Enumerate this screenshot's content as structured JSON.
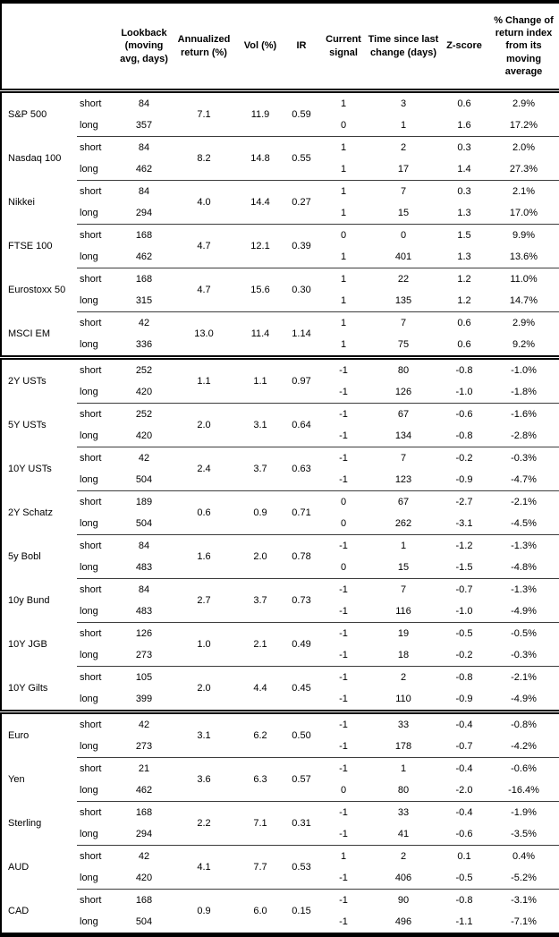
{
  "table": {
    "columns": [
      "",
      "",
      "Lookback (moving avg, days)",
      "Annualized return (%)",
      "Vol (%)",
      "IR",
      "Current signal",
      "Time since last change (days)",
      "Z-score",
      "% Change of return index from its moving average"
    ],
    "legs": {
      "short": "short",
      "long": "long"
    },
    "colors": {
      "text": "#000000",
      "background": "#ffffff",
      "rule": "#000000"
    },
    "sections": [
      {
        "rows": [
          {
            "name": "S&P 500",
            "ann": "7.1",
            "vol": "11.9",
            "ir": "0.59",
            "short": {
              "lookback": "84",
              "signal": "1",
              "days": "3",
              "z": "0.6",
              "chg": "2.9%"
            },
            "long": {
              "lookback": "357",
              "signal": "0",
              "days": "1",
              "z": "1.6",
              "chg": "17.2%"
            }
          },
          {
            "name": "Nasdaq 100",
            "ann": "8.2",
            "vol": "14.8",
            "ir": "0.55",
            "short": {
              "lookback": "84",
              "signal": "1",
              "days": "2",
              "z": "0.3",
              "chg": "2.0%"
            },
            "long": {
              "lookback": "462",
              "signal": "1",
              "days": "17",
              "z": "1.4",
              "chg": "27.3%"
            }
          },
          {
            "name": "Nikkei",
            "ann": "4.0",
            "vol": "14.4",
            "ir": "0.27",
            "short": {
              "lookback": "84",
              "signal": "1",
              "days": "7",
              "z": "0.3",
              "chg": "2.1%"
            },
            "long": {
              "lookback": "294",
              "signal": "1",
              "days": "15",
              "z": "1.3",
              "chg": "17.0%"
            }
          },
          {
            "name": "FTSE 100",
            "ann": "4.7",
            "vol": "12.1",
            "ir": "0.39",
            "short": {
              "lookback": "168",
              "signal": "0",
              "days": "0",
              "z": "1.5",
              "chg": "9.9%"
            },
            "long": {
              "lookback": "462",
              "signal": "1",
              "days": "401",
              "z": "1.3",
              "chg": "13.6%"
            }
          },
          {
            "name": "Eurostoxx 50",
            "ann": "4.7",
            "vol": "15.6",
            "ir": "0.30",
            "short": {
              "lookback": "168",
              "signal": "1",
              "days": "22",
              "z": "1.2",
              "chg": "11.0%"
            },
            "long": {
              "lookback": "315",
              "signal": "1",
              "days": "135",
              "z": "1.2",
              "chg": "14.7%"
            }
          },
          {
            "name": "MSCI EM",
            "ann": "13.0",
            "vol": "11.4",
            "ir": "1.14",
            "short": {
              "lookback": "42",
              "signal": "1",
              "days": "7",
              "z": "0.6",
              "chg": "2.9%"
            },
            "long": {
              "lookback": "336",
              "signal": "1",
              "days": "75",
              "z": "0.6",
              "chg": "9.2%"
            }
          }
        ]
      },
      {
        "rows": [
          {
            "name": "2Y USTs",
            "ann": "1.1",
            "vol": "1.1",
            "ir": "0.97",
            "short": {
              "lookback": "252",
              "signal": "-1",
              "days": "80",
              "z": "-0.8",
              "chg": "-1.0%"
            },
            "long": {
              "lookback": "420",
              "signal": "-1",
              "days": "126",
              "z": "-1.0",
              "chg": "-1.8%"
            }
          },
          {
            "name": "5Y USTs",
            "ann": "2.0",
            "vol": "3.1",
            "ir": "0.64",
            "short": {
              "lookback": "252",
              "signal": "-1",
              "days": "67",
              "z": "-0.6",
              "chg": "-1.6%"
            },
            "long": {
              "lookback": "420",
              "signal": "-1",
              "days": "134",
              "z": "-0.8",
              "chg": "-2.8%"
            }
          },
          {
            "name": "10Y USTs",
            "ann": "2.4",
            "vol": "3.7",
            "ir": "0.63",
            "short": {
              "lookback": "42",
              "signal": "-1",
              "days": "7",
              "z": "-0.2",
              "chg": "-0.3%"
            },
            "long": {
              "lookback": "504",
              "signal": "-1",
              "days": "123",
              "z": "-0.9",
              "chg": "-4.7%"
            }
          },
          {
            "name": "2Y Schatz",
            "ann": "0.6",
            "vol": "0.9",
            "ir": "0.71",
            "short": {
              "lookback": "189",
              "signal": "0",
              "days": "67",
              "z": "-2.7",
              "chg": "-2.1%"
            },
            "long": {
              "lookback": "504",
              "signal": "0",
              "days": "262",
              "z": "-3.1",
              "chg": "-4.5%"
            }
          },
          {
            "name": "5y Bobl",
            "ann": "1.6",
            "vol": "2.0",
            "ir": "0.78",
            "short": {
              "lookback": "84",
              "signal": "-1",
              "days": "1",
              "z": "-1.2",
              "chg": "-1.3%"
            },
            "long": {
              "lookback": "483",
              "signal": "0",
              "days": "15",
              "z": "-1.5",
              "chg": "-4.8%"
            }
          },
          {
            "name": "10y Bund",
            "ann": "2.7",
            "vol": "3.7",
            "ir": "0.73",
            "short": {
              "lookback": "84",
              "signal": "-1",
              "days": "7",
              "z": "-0.7",
              "chg": "-1.3%"
            },
            "long": {
              "lookback": "483",
              "signal": "-1",
              "days": "116",
              "z": "-1.0",
              "chg": "-4.9%"
            }
          },
          {
            "name": "10Y JGB",
            "ann": "1.0",
            "vol": "2.1",
            "ir": "0.49",
            "short": {
              "lookback": "126",
              "signal": "-1",
              "days": "19",
              "z": "-0.5",
              "chg": "-0.5%"
            },
            "long": {
              "lookback": "273",
              "signal": "-1",
              "days": "18",
              "z": "-0.2",
              "chg": "-0.3%"
            }
          },
          {
            "name": "10Y Gilts",
            "ann": "2.0",
            "vol": "4.4",
            "ir": "0.45",
            "short": {
              "lookback": "105",
              "signal": "-1",
              "days": "2",
              "z": "-0.8",
              "chg": "-2.1%"
            },
            "long": {
              "lookback": "399",
              "signal": "-1",
              "days": "110",
              "z": "-0.9",
              "chg": "-4.9%"
            }
          }
        ]
      },
      {
        "rows": [
          {
            "name": "Euro",
            "ann": "3.1",
            "vol": "6.2",
            "ir": "0.50",
            "short": {
              "lookback": "42",
              "signal": "-1",
              "days": "33",
              "z": "-0.4",
              "chg": "-0.8%"
            },
            "long": {
              "lookback": "273",
              "signal": "-1",
              "days": "178",
              "z": "-0.7",
              "chg": "-4.2%"
            }
          },
          {
            "name": "Yen",
            "ann": "3.6",
            "vol": "6.3",
            "ir": "0.57",
            "short": {
              "lookback": "21",
              "signal": "-1",
              "days": "1",
              "z": "-0.4",
              "chg": "-0.6%"
            },
            "long": {
              "lookback": "462",
              "signal": "0",
              "days": "80",
              "z": "-2.0",
              "chg": "-16.4%"
            }
          },
          {
            "name": "Sterling",
            "ann": "2.2",
            "vol": "7.1",
            "ir": "0.31",
            "short": {
              "lookback": "168",
              "signal": "-1",
              "days": "33",
              "z": "-0.4",
              "chg": "-1.9%"
            },
            "long": {
              "lookback": "294",
              "signal": "-1",
              "days": "41",
              "z": "-0.6",
              "chg": "-3.5%"
            }
          },
          {
            "name": "AUD",
            "ann": "4.1",
            "vol": "7.7",
            "ir": "0.53",
            "short": {
              "lookback": "42",
              "signal": "1",
              "days": "2",
              "z": "0.1",
              "chg": "0.4%"
            },
            "long": {
              "lookback": "420",
              "signal": "-1",
              "days": "406",
              "z": "-0.5",
              "chg": "-5.2%"
            }
          },
          {
            "name": "CAD",
            "ann": "0.9",
            "vol": "6.0",
            "ir": "0.15",
            "short": {
              "lookback": "168",
              "signal": "-1",
              "days": "90",
              "z": "-0.8",
              "chg": "-3.1%"
            },
            "long": {
              "lookback": "504",
              "signal": "-1",
              "days": "496",
              "z": "-1.1",
              "chg": "-7.1%"
            }
          }
        ]
      }
    ]
  }
}
